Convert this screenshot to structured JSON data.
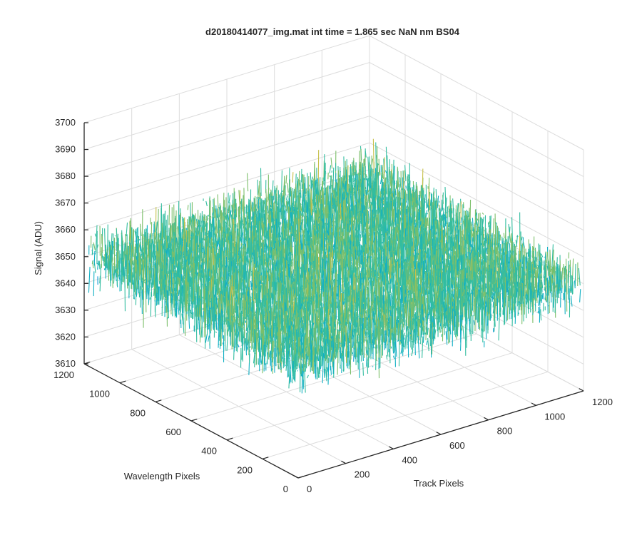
{
  "chart_data": {
    "type": "surface3d",
    "title": "d20180414077_img.mat int time = 1.865 sec  NaN nm BS04",
    "zlabel": "Signal (ADU)",
    "xlabel": "Track Pixels",
    "ylabel": "Wavelength Pixels",
    "zlim": [
      3610,
      3700
    ],
    "xlim": [
      0,
      1200
    ],
    "ylim": [
      0,
      1200
    ],
    "z_ticks": [
      "3610",
      "3620",
      "3630",
      "3640",
      "3650",
      "3660",
      "3670",
      "3680",
      "3690",
      "3700"
    ],
    "x_ticks": [
      "0",
      "200",
      "400",
      "600",
      "800",
      "1000",
      "1200"
    ],
    "y_ticks": [
      "0",
      "200",
      "400",
      "600",
      "800",
      "1000",
      "1200"
    ],
    "surface": {
      "mean_signal": 3650,
      "noise_range": [
        3612,
        3694
      ],
      "colormap": [
        "#0072bd",
        "#0f99d6",
        "#12b0c4",
        "#33bda0",
        "#7cbf6a",
        "#c6c04a",
        "#e5c23a"
      ]
    },
    "grid": true
  }
}
